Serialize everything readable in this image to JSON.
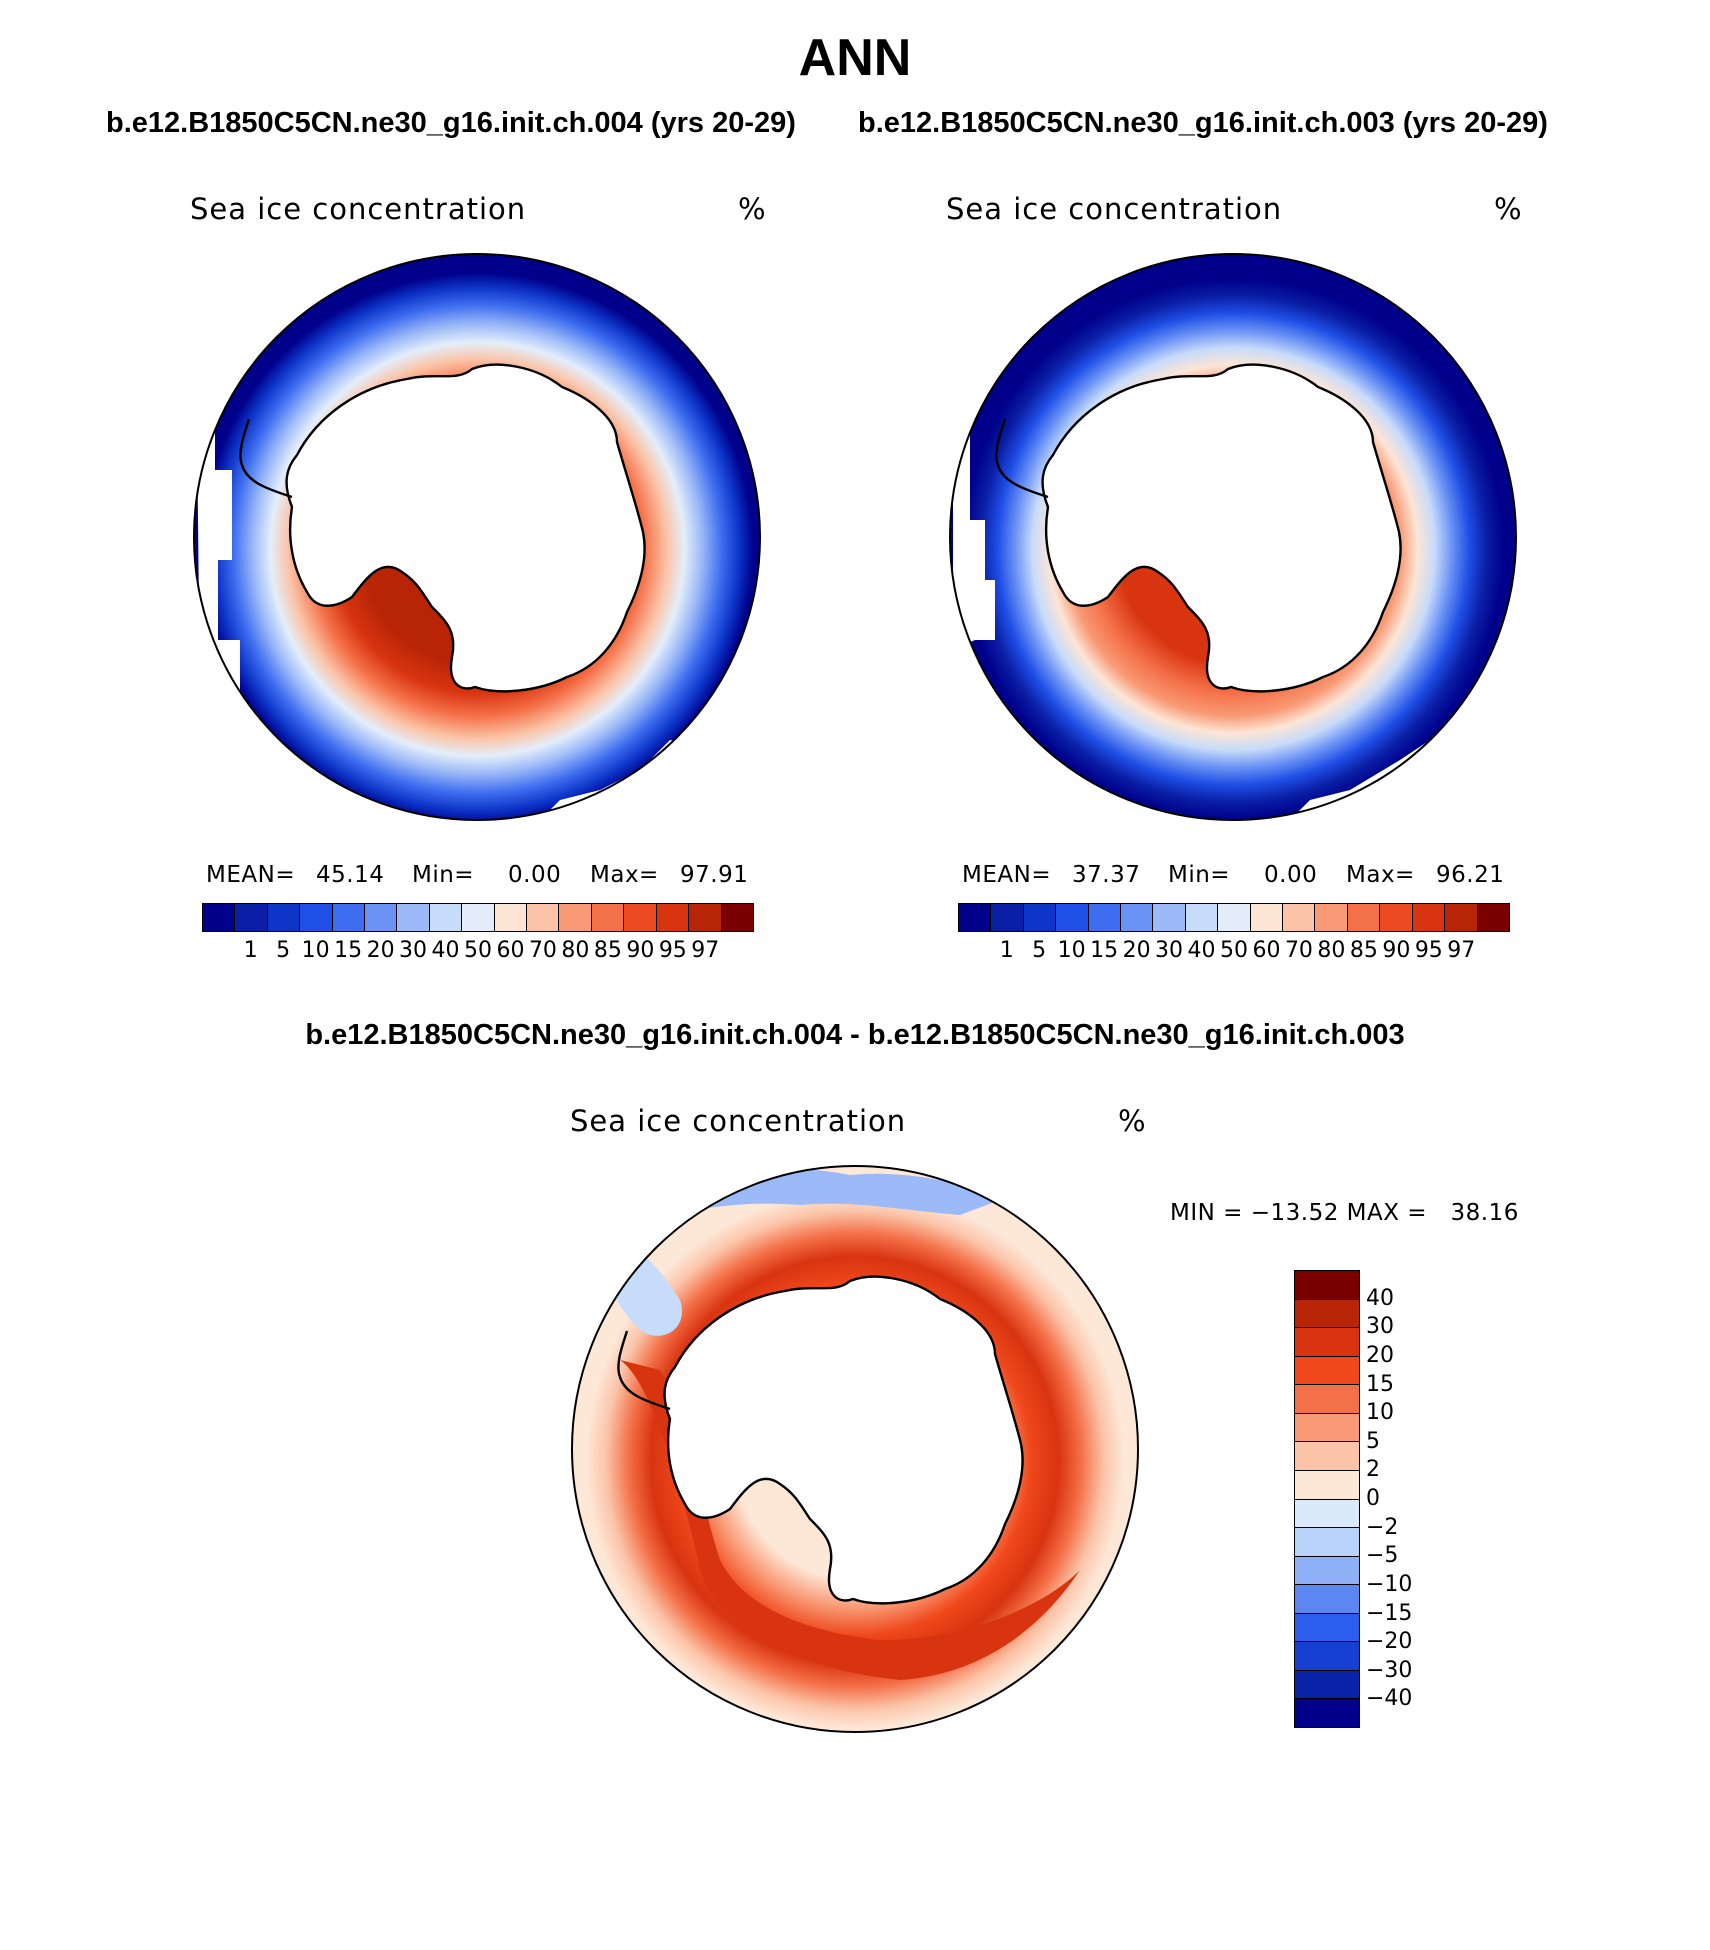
{
  "header": {
    "title": "ANN",
    "case_a": "b.e12.B1850C5CN.ne30_g16.init.ch.004 (yrs 20-29)",
    "case_b": "b.e12.B1850C5CN.ne30_g16.init.ch.003 (yrs 20-29)",
    "diff_title": "b.e12.B1850C5CN.ne30_g16.init.ch.004 - b.e12.B1850C5CN.ne30_g16.init.ch.003"
  },
  "panels": [
    {
      "variable": "Sea ice concentration",
      "units": "%",
      "mean_label": "MEAN=",
      "mean_value": "45.14",
      "min_label": "Min=",
      "min_value": "0.00",
      "max_label": "Max=",
      "max_value": "97.91"
    },
    {
      "variable": "Sea ice concentration",
      "units": "%",
      "mean_label": "MEAN=",
      "mean_value": "37.37",
      "min_label": "Min=",
      "min_value": "0.00",
      "max_label": "Max=",
      "max_value": "96.21"
    }
  ],
  "diff_panel": {
    "variable": "Sea ice concentration",
    "units": "%",
    "minmax_text": "MIN = −13.52 MAX =   38.16"
  },
  "colorbar_main": {
    "labels": [
      "1",
      "5",
      "10",
      "15",
      "20",
      "30",
      "40",
      "50",
      "60",
      "70",
      "80",
      "85",
      "90",
      "95",
      "97"
    ],
    "colors": [
      "#00008b",
      "#0a1fa6",
      "#0d35c8",
      "#1f4fe6",
      "#3e6df0",
      "#6b93f5",
      "#9cbaf8",
      "#c7dbfa",
      "#e4eefb",
      "#fde5d6",
      "#fbc4a8",
      "#f89a75",
      "#f47048",
      "#ec4a22",
      "#d83410",
      "#b82406",
      "#7a0000"
    ]
  },
  "colorbar_diff": {
    "labels": [
      "40",
      "30",
      "20",
      "15",
      "10",
      "5",
      "2",
      "0",
      "−2",
      "−5",
      "−10",
      "−15",
      "−20",
      "−30",
      "−40"
    ],
    "colors": [
      "#7a0000",
      "#b82406",
      "#d83410",
      "#f0481c",
      "#f47048",
      "#f89a75",
      "#fbc4a8",
      "#fde8d8",
      "#dbeafa",
      "#b9d2fa",
      "#8fb0f7",
      "#5c86f1",
      "#2c5ded",
      "#1640d2",
      "#0a22a8",
      "#00008b"
    ]
  },
  "chart_data": [
    {
      "type": "heatmap",
      "title": "Sea ice concentration",
      "units": "%",
      "projection": "south polar stereographic",
      "mean": 45.14,
      "min": 0.0,
      "max": 97.91,
      "contour_levels": [
        1,
        5,
        10,
        15,
        20,
        30,
        40,
        50,
        60,
        70,
        80,
        85,
        90,
        95,
        97
      ]
    },
    {
      "type": "heatmap",
      "title": "Sea ice concentration",
      "units": "%",
      "projection": "south polar stereographic",
      "mean": 37.37,
      "min": 0.0,
      "max": 96.21,
      "contour_levels": [
        1,
        5,
        10,
        15,
        20,
        30,
        40,
        50,
        60,
        70,
        80,
        85,
        90,
        95,
        97
      ]
    },
    {
      "type": "heatmap",
      "title": "Sea ice concentration",
      "units": "%",
      "projection": "south polar stereographic",
      "min": -13.52,
      "max": 38.16,
      "contour_levels": [
        -40,
        -30,
        -20,
        -15,
        -10,
        -5,
        -2,
        0,
        2,
        5,
        10,
        15,
        20,
        30,
        40
      ]
    }
  ]
}
